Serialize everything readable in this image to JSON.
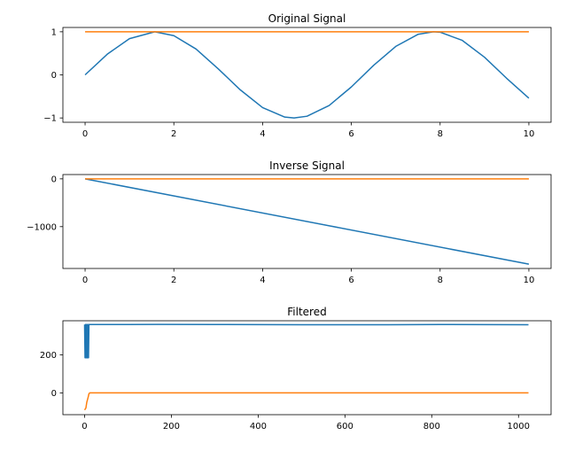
{
  "chart_data": [
    {
      "type": "line",
      "title": "Original Signal",
      "xlabel": "",
      "ylabel": "",
      "xlim": [
        -0.5,
        10.5
      ],
      "ylim": [
        -1.1,
        1.1
      ],
      "xticks": [
        0,
        2,
        4,
        6,
        8,
        10
      ],
      "xtick_labels": [
        "0",
        "2",
        "4",
        "6",
        "8",
        "10"
      ],
      "yticks": [
        -1,
        0,
        1
      ],
      "ytick_labels": [
        "−1",
        "0",
        "1"
      ],
      "grid": false,
      "series": [
        {
          "color": "#1f77b4",
          "points": [
            [
              0,
              0
            ],
            [
              0.5,
              0.48
            ],
            [
              1,
              0.84
            ],
            [
              1.57,
              1.0
            ],
            [
              2,
              0.91
            ],
            [
              2.5,
              0.6
            ],
            [
              3,
              0.14
            ],
            [
              3.5,
              -0.35
            ],
            [
              4,
              -0.76
            ],
            [
              4.5,
              -0.98
            ],
            [
              4.71,
              -1.0
            ],
            [
              5,
              -0.96
            ],
            [
              5.5,
              -0.71
            ],
            [
              6,
              -0.28
            ],
            [
              6.5,
              0.22
            ],
            [
              7,
              0.66
            ],
            [
              7.5,
              0.94
            ],
            [
              7.85,
              1.0
            ],
            [
              8,
              0.99
            ],
            [
              8.5,
              0.8
            ],
            [
              9,
              0.41
            ],
            [
              9.5,
              -0.08
            ],
            [
              10,
              -0.54
            ]
          ]
        },
        {
          "color": "#ff7f0e",
          "points": [
            [
              0,
              1.0
            ],
            [
              10,
              1.0
            ]
          ]
        }
      ]
    },
    {
      "type": "line",
      "title": "Inverse Signal",
      "xlabel": "",
      "ylabel": "",
      "xlim": [
        -0.5,
        10.5
      ],
      "ylim": [
        -1875,
        90
      ],
      "xticks": [
        0,
        2,
        4,
        6,
        8,
        10
      ],
      "xtick_labels": [
        "0",
        "2",
        "4",
        "6",
        "8",
        "10"
      ],
      "yticks": [
        -1000,
        0
      ],
      "ytick_labels": [
        "−1000",
        "0"
      ],
      "grid": false,
      "series": [
        {
          "color": "#1f77b4",
          "points": [
            [
              0,
              0
            ],
            [
              10,
              -1785
            ]
          ]
        },
        {
          "color": "#ff7f0e",
          "points": [
            [
              0,
              0
            ],
            [
              10,
              0
            ]
          ]
        }
      ]
    },
    {
      "type": "line",
      "title": "Filtered",
      "xlabel": "",
      "ylabel": "",
      "xlim": [
        -50,
        1075
      ],
      "ylim": [
        -115,
        380
      ],
      "xticks": [
        0,
        200,
        400,
        600,
        800,
        1000
      ],
      "xtick_labels": [
        "0",
        "200",
        "400",
        "600",
        "800",
        "1000"
      ],
      "yticks": [
        0,
        200
      ],
      "ytick_labels": [
        "0",
        "200"
      ],
      "grid": false,
      "series": [
        {
          "color": "#1f77b4",
          "points": [
            [
              0,
              360
            ],
            [
              1,
              185
            ],
            [
              2,
              360
            ],
            [
              3,
              185
            ],
            [
              4,
              360
            ],
            [
              5,
              185
            ],
            [
              6,
              360
            ],
            [
              7,
              185
            ],
            [
              8,
              360
            ],
            [
              9,
              185
            ],
            [
              10,
              360
            ],
            [
              11,
              360
            ],
            [
              100,
              360
            ],
            [
              170,
              361
            ],
            [
              300,
              360
            ],
            [
              500,
              359
            ],
            [
              700,
              359
            ],
            [
              820,
              360
            ],
            [
              1023,
              359
            ]
          ]
        },
        {
          "color": "#ff7f0e",
          "points": [
            [
              0,
              -90
            ],
            [
              3,
              -80
            ],
            [
              5,
              -50
            ],
            [
              8,
              -25
            ],
            [
              10,
              -5
            ],
            [
              12,
              0
            ],
            [
              1023,
              0
            ]
          ]
        }
      ]
    }
  ]
}
